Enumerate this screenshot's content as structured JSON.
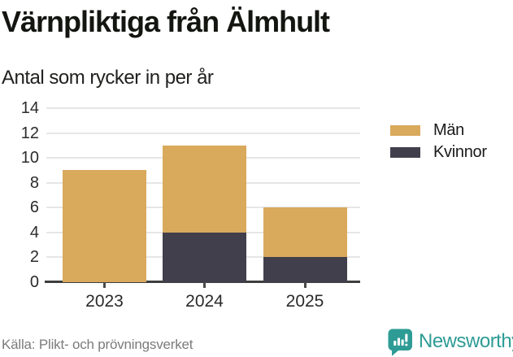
{
  "header": {
    "title": "Värnpliktiga från Älmhult",
    "subtitle": "Antal som rycker in per år"
  },
  "chart_data": {
    "type": "bar",
    "stacked": true,
    "title": "Värnpliktiga från Älmhult",
    "subtitle": "Antal som rycker in per år",
    "categories": [
      "2023",
      "2024",
      "2025"
    ],
    "series": [
      {
        "name": "Män",
        "color": "#D9A95C",
        "values": [
          9,
          7,
          4
        ]
      },
      {
        "name": "Kvinnor",
        "color": "#423F4D",
        "values": [
          0,
          4,
          2
        ]
      }
    ],
    "stack_order_bottom_to_top": [
      "Kvinnor",
      "Män"
    ],
    "totals": [
      9,
      11,
      6
    ],
    "ylim": [
      0,
      14
    ],
    "yticks": [
      0,
      2,
      4,
      6,
      8,
      10,
      12,
      14
    ],
    "grid": true,
    "legend_position": "right"
  },
  "footer": {
    "source": "Källa: Plikt- och prövningsverket",
    "brand": "Newsworthy"
  },
  "colors": {
    "men": "#D9A95C",
    "women": "#423F4D",
    "teal": "#2E9C95",
    "grid": "#E6E6E6",
    "axis": "#3D3D3D",
    "title_text": "#131510",
    "muted_text": "#7B7B7B"
  },
  "icons": {
    "brand_icon": "newsworthy-speech-bubble-bar-chart"
  }
}
